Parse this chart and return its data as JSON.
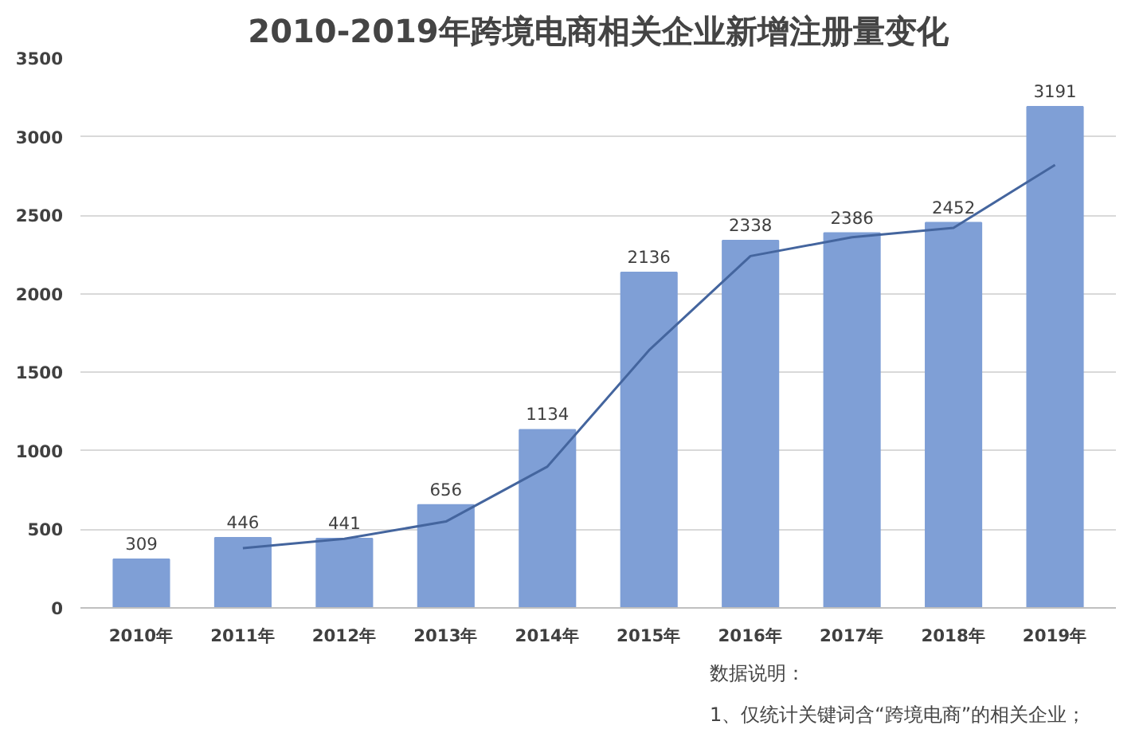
{
  "chart_data": {
    "type": "bar",
    "title": "2010-2019年跨境电商相关企业新增注册量变化",
    "categories": [
      "2010年",
      "2011年",
      "2012年",
      "2013年",
      "2014年",
      "2015年",
      "2016年",
      "2017年",
      "2018年",
      "2019年"
    ],
    "series": [
      {
        "color": "#7f9fd6",
        "values": [
          309,
          446,
          441,
          656,
          1134,
          2136,
          2338,
          2386,
          2452,
          3191
        ],
        "data_labels": true
      },
      {
        "type": "line",
        "color": "#44659e",
        "values": [
          null,
          380,
          440,
          550,
          900,
          1640,
          2240,
          2360,
          2420,
          2820
        ]
      }
    ],
    "ylim": [
      0,
      3500
    ],
    "yticks": [
      0,
      500,
      1000,
      1500,
      2000,
      2500,
      3000,
      3500
    ],
    "grid": "y",
    "annotations": [
      "数据说明：",
      "1、仅统计关键词含“跨境电商”的相关企业；"
    ]
  }
}
